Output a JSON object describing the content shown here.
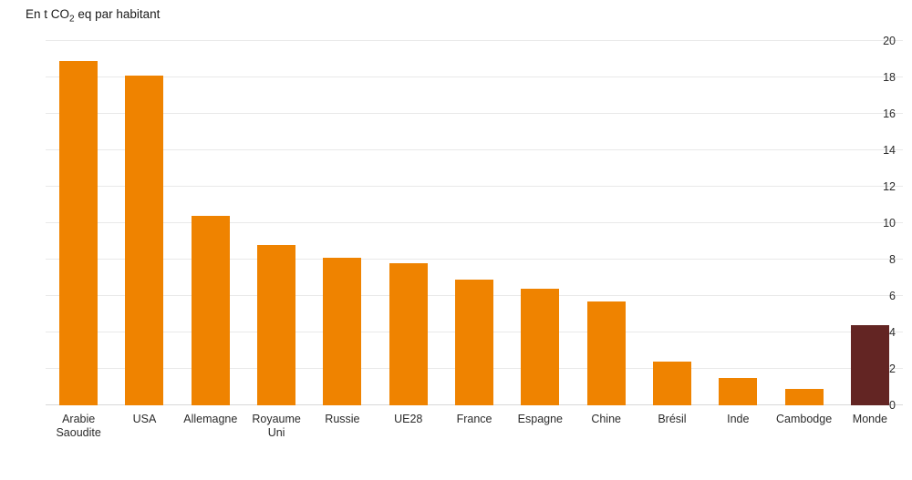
{
  "title": {
    "prefix": "En t CO",
    "subscript": "2",
    "suffix": " eq par habitant"
  },
  "colors": {
    "bar_default": "#EF8300",
    "bar_highlight": "#632523",
    "gridline": "#e9e9e9",
    "axis_line": "#d8d8d8",
    "text": "#2b2b2b",
    "background": "#ffffff"
  },
  "chart_data": {
    "type": "bar",
    "title": "En t CO2 eq par habitant",
    "categories": [
      "Arabie\nSaoudite",
      "USA",
      "Allemagne",
      "Royaume\nUni",
      "Russie",
      "UE28",
      "France",
      "Espagne",
      "Chine",
      "Brésil",
      "Inde",
      "Cambodge",
      "Monde"
    ],
    "values": [
      18.9,
      18.1,
      10.4,
      8.8,
      8.1,
      7.8,
      6.9,
      6.4,
      5.7,
      2.4,
      1.5,
      0.9,
      4.4
    ],
    "bar_colors": [
      "#EF8300",
      "#EF8300",
      "#EF8300",
      "#EF8300",
      "#EF8300",
      "#EF8300",
      "#EF8300",
      "#EF8300",
      "#EF8300",
      "#EF8300",
      "#EF8300",
      "#EF8300",
      "#632523"
    ],
    "highlight_index": 12,
    "xlabel": "",
    "ylabel": "",
    "ylim": [
      0,
      20
    ],
    "ytick_step": 2,
    "yticks": [
      0,
      2,
      4,
      6,
      8,
      10,
      12,
      14,
      16,
      18,
      20
    ],
    "grid": true,
    "legend_position": "none"
  }
}
